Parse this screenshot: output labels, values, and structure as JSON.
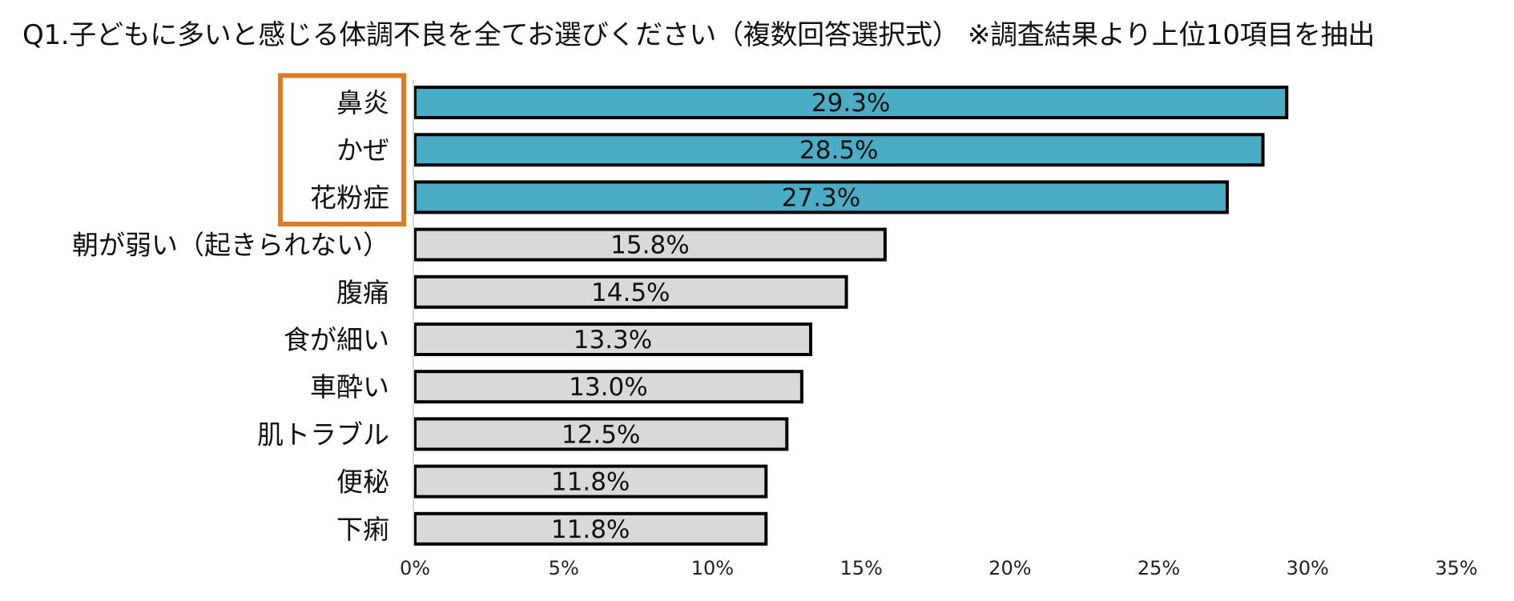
{
  "chart_data": {
    "type": "bar",
    "orientation": "horizontal",
    "title": "Q1.子どもに多いと感じる体調不良を全てお選びください（複数回答選択式） ※調査結果より上位10項目を抽出",
    "categories": [
      "鼻炎",
      "かぜ",
      "花粉症",
      "朝が弱い（起きられない）",
      "腹痛",
      "食が細い",
      "車酔い",
      "肌トラブル",
      "便秘",
      "下痢"
    ],
    "values": [
      29.3,
      28.5,
      27.3,
      15.8,
      14.5,
      13.3,
      13.0,
      12.5,
      11.8,
      11.8
    ],
    "data_labels": [
      "29.3%",
      "28.5%",
      "27.3%",
      "15.8%",
      "14.5%",
      "13.3%",
      "13.0%",
      "12.5%",
      "11.8%",
      "11.8%"
    ],
    "xlim": [
      0,
      35
    ],
    "xticks": [
      0,
      5,
      10,
      15,
      20,
      25,
      30,
      35
    ],
    "xtick_labels": [
      "0%",
      "5%",
      "10%",
      "15%",
      "20%",
      "25%",
      "30%",
      "35%"
    ],
    "highlighted_count": 3,
    "colors": {
      "highlight_bar": "#4BACC6",
      "default_bar": "#D9D9D9",
      "bar_stroke": "#000000",
      "highlight_box": "#E07B24",
      "axis": "#D9D9D9"
    },
    "xlabel": "",
    "ylabel": "",
    "grid": false,
    "legend": "none"
  }
}
